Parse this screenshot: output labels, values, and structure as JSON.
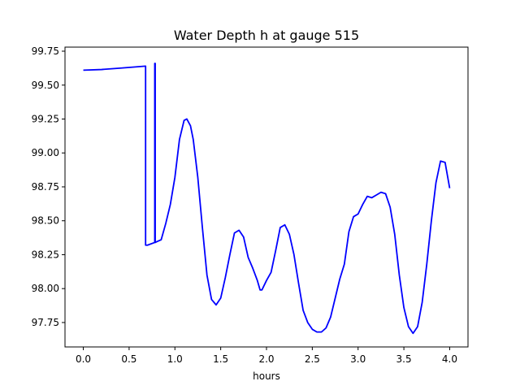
{
  "chart_data": {
    "type": "line",
    "title": "Water Depth h at gauge 515",
    "xlabel": "hours",
    "ylabel": "",
    "xlim": [
      -0.2,
      4.2
    ],
    "ylim": [
      97.57,
      99.78
    ],
    "grid": false,
    "xticks": [
      0.0,
      0.5,
      1.0,
      1.5,
      2.0,
      2.5,
      3.0,
      3.5,
      4.0
    ],
    "xtick_labels": [
      "0.0",
      "0.5",
      "1.0",
      "1.5",
      "2.0",
      "2.5",
      "3.0",
      "3.5",
      "4.0"
    ],
    "yticks": [
      97.75,
      98.0,
      98.25,
      98.5,
      98.75,
      99.0,
      99.25,
      99.5,
      99.75
    ],
    "ytick_labels": [
      "97.75",
      "98.00",
      "98.25",
      "98.50",
      "98.75",
      "99.00",
      "99.25",
      "99.50",
      "99.75"
    ],
    "series": [
      {
        "name": "",
        "color": "#0000ff",
        "x": [
          0.0,
          0.2,
          0.4,
          0.68,
          0.68,
          0.7,
          0.78,
          0.78,
          0.785,
          0.785,
          0.8,
          0.85,
          0.9,
          0.95,
          1.0,
          1.05,
          1.1,
          1.13,
          1.17,
          1.2,
          1.25,
          1.3,
          1.35,
          1.4,
          1.45,
          1.5,
          1.55,
          1.6,
          1.65,
          1.7,
          1.75,
          1.8,
          1.85,
          1.9,
          1.93,
          1.95,
          2.0,
          2.05,
          2.1,
          2.15,
          2.2,
          2.25,
          2.3,
          2.35,
          2.4,
          2.45,
          2.5,
          2.55,
          2.6,
          2.65,
          2.7,
          2.75,
          2.8,
          2.85,
          2.9,
          2.95,
          3.0,
          3.05,
          3.1,
          3.15,
          3.2,
          3.25,
          3.3,
          3.35,
          3.4,
          3.45,
          3.5,
          3.55,
          3.6,
          3.65,
          3.7,
          3.75,
          3.8,
          3.85,
          3.9,
          3.95,
          4.0
        ],
        "y": [
          99.61,
          99.615,
          99.625,
          99.64,
          98.32,
          98.32,
          98.34,
          99.66,
          99.66,
          98.34,
          98.345,
          98.36,
          98.48,
          98.62,
          98.82,
          99.1,
          99.24,
          99.25,
          99.2,
          99.1,
          98.82,
          98.45,
          98.1,
          97.92,
          97.88,
          97.93,
          98.08,
          98.25,
          98.41,
          98.43,
          98.38,
          98.23,
          98.15,
          98.06,
          97.99,
          97.99,
          98.06,
          98.12,
          98.28,
          98.45,
          98.47,
          98.4,
          98.25,
          98.04,
          97.84,
          97.75,
          97.7,
          97.68,
          97.68,
          97.71,
          97.79,
          97.93,
          98.07,
          98.18,
          98.42,
          98.53,
          98.55,
          98.62,
          98.68,
          98.67,
          98.69,
          98.71,
          98.7,
          98.6,
          98.4,
          98.1,
          97.86,
          97.72,
          97.67,
          97.72,
          97.9,
          98.18,
          98.5,
          98.78,
          98.94,
          98.93,
          98.74
        ]
      }
    ]
  }
}
